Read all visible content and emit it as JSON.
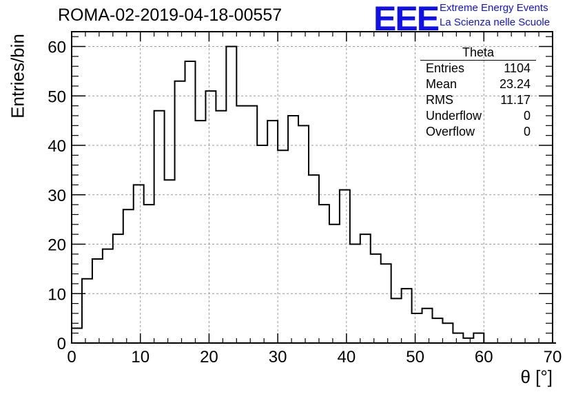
{
  "title": "ROMA-02-2019-04-18-00557",
  "logo": {
    "mark": "EEE",
    "line1": "Extreme Energy Events",
    "line2": "La Scienza nelle Scuole",
    "color": "#1010e8"
  },
  "stats": {
    "name": "Theta",
    "rows": [
      {
        "label": "Entries",
        "value": "1104"
      },
      {
        "label": "Mean",
        "value": "23.24"
      },
      {
        "label": "RMS",
        "value": "11.17"
      },
      {
        "label": "Underflow",
        "value": "0"
      },
      {
        "label": "Overflow",
        "value": "0"
      }
    ]
  },
  "chart_data": {
    "type": "bar",
    "subtype": "step-histogram",
    "xlabel": "θ [°]",
    "ylabel": "Entries/bin",
    "xlim": [
      0,
      70
    ],
    "ylim": [
      0,
      63
    ],
    "x_ticks": [
      "0",
      "10",
      "20",
      "30",
      "40",
      "50",
      "60",
      "70"
    ],
    "y_ticks": [
      "0",
      "10",
      "20",
      "30",
      "40",
      "50",
      "60"
    ],
    "grid": true,
    "bin_width": 1.5,
    "bin_start": 0,
    "values": [
      3,
      13,
      17,
      19,
      22,
      27,
      32,
      28,
      47,
      33,
      53,
      57,
      45,
      51,
      47,
      60,
      48,
      48,
      40,
      45,
      39,
      46,
      44,
      34,
      28,
      24,
      31,
      20,
      22,
      18,
      16,
      9,
      11,
      6,
      7,
      5,
      4,
      2,
      1,
      2,
      0,
      0,
      0,
      0,
      0,
      0,
      0
    ]
  }
}
